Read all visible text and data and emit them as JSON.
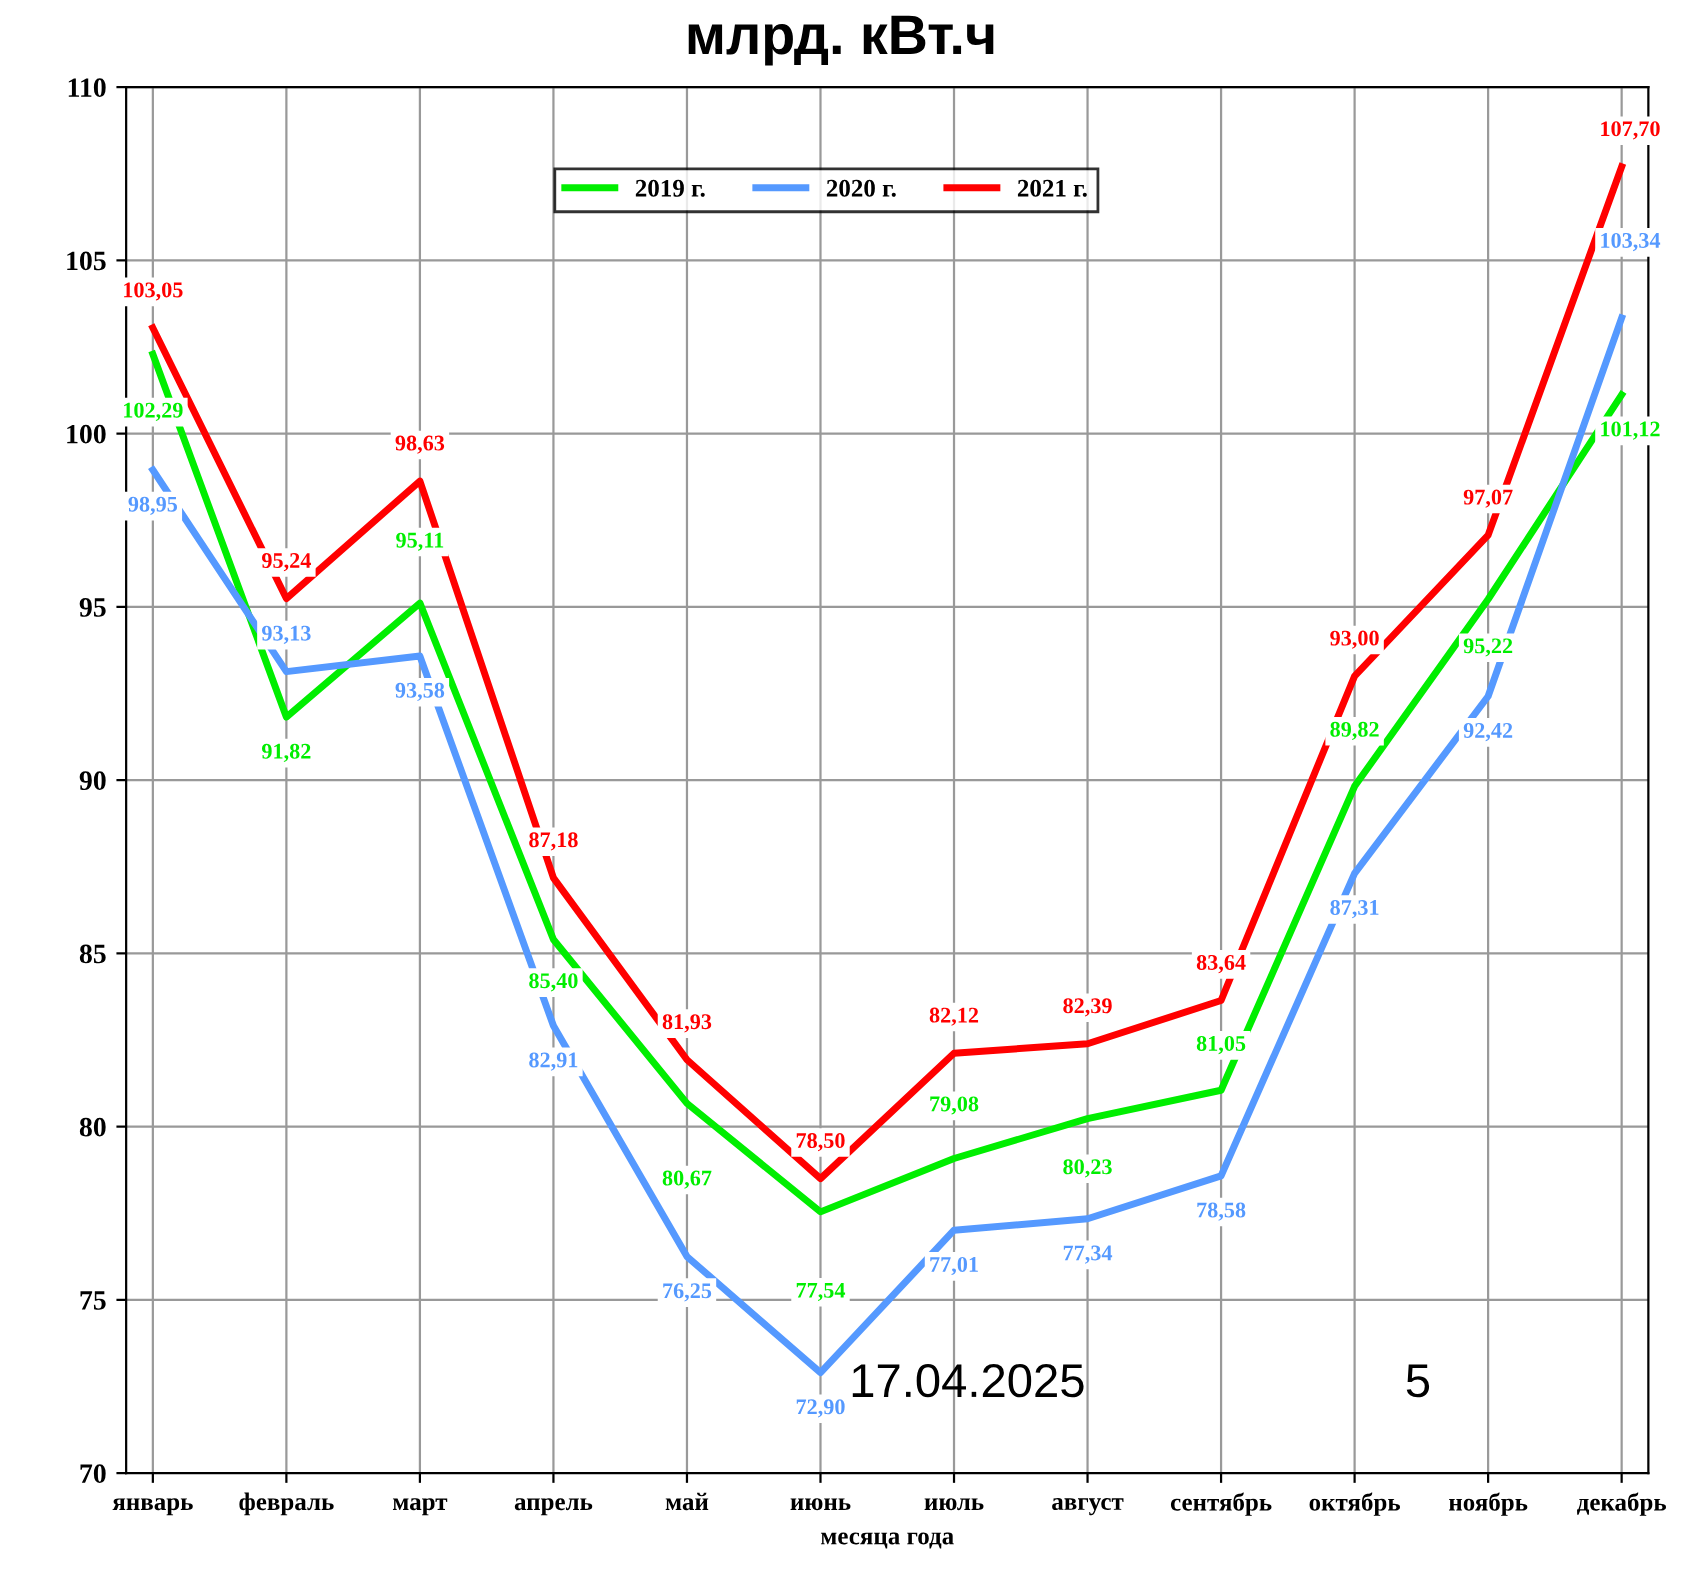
{
  "chart_data": {
    "type": "line",
    "title": "млрд. кВт.ч",
    "xlabel": "месяца года",
    "categories": [
      "январь",
      "февраль",
      "март",
      "апрель",
      "май",
      "июнь",
      "июль",
      "август",
      "сентябрь",
      "октябрь",
      "ноябрь",
      "декабрь"
    ],
    "series": [
      {
        "name": "2019 г.",
        "color": "#00ee00",
        "values": [
          102.29,
          91.82,
          95.11,
          85.4,
          80.67,
          77.54,
          79.08,
          80.23,
          81.05,
          89.82,
          95.22,
          101.12
        ],
        "value_labels": [
          "102,29",
          "91,82",
          "95,11",
          "85,40",
          "80,67",
          "77,54",
          "79,08",
          "80,23",
          "81,05",
          "89,82",
          "95,22",
          "101,12"
        ]
      },
      {
        "name": "2020 г.",
        "color": "#5599ff",
        "values": [
          98.95,
          93.13,
          93.58,
          82.91,
          76.25,
          72.9,
          77.01,
          77.34,
          78.58,
          87.31,
          92.42,
          103.34
        ],
        "value_labels": [
          "98,95",
          "93,13",
          "93,58",
          "82,91",
          "76,25",
          "72,90",
          "77,01",
          "77,34",
          "78,58",
          "87,31",
          "92,42",
          "103,34"
        ]
      },
      {
        "name": "2021 г.",
        "color": "#ff0000",
        "values": [
          103.05,
          95.24,
          98.63,
          87.18,
          81.93,
          78.5,
          82.12,
          82.39,
          83.64,
          93.0,
          97.07,
          107.7
        ],
        "value_labels": [
          "103,05",
          "95,24",
          "98,63",
          "87,18",
          "81,93",
          "78,50",
          "82,12",
          "82,39",
          "83,64",
          "93,00",
          "97,07",
          "107,70"
        ]
      }
    ],
    "ylim": [
      70,
      110
    ],
    "yticks": [
      70,
      75,
      80,
      85,
      90,
      95,
      100,
      105,
      110
    ],
    "grid": true,
    "legend": "top",
    "marker": "none",
    "line_style": "solid",
    "annotations": [
      "17.04.2025",
      "5"
    ]
  }
}
